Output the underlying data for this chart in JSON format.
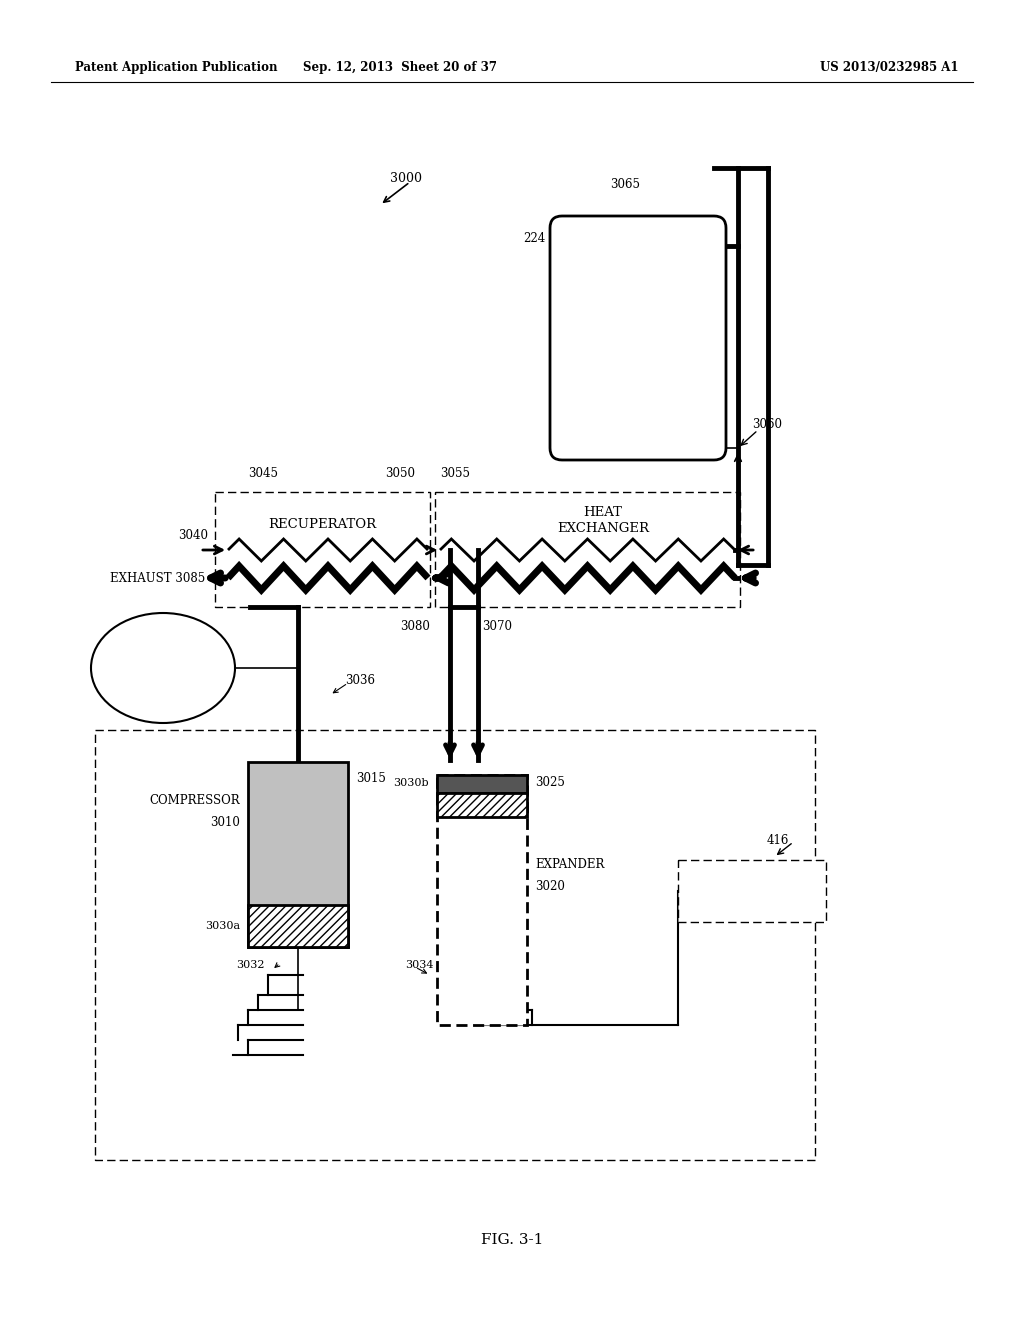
{
  "bg_color": "#ffffff",
  "header_left": "Patent Application Publication",
  "header_mid": "Sep. 12, 2013  Sheet 20 of 37",
  "header_right": "US 2013/0232985 A1",
  "fig_label": "FIG. 3-1"
}
